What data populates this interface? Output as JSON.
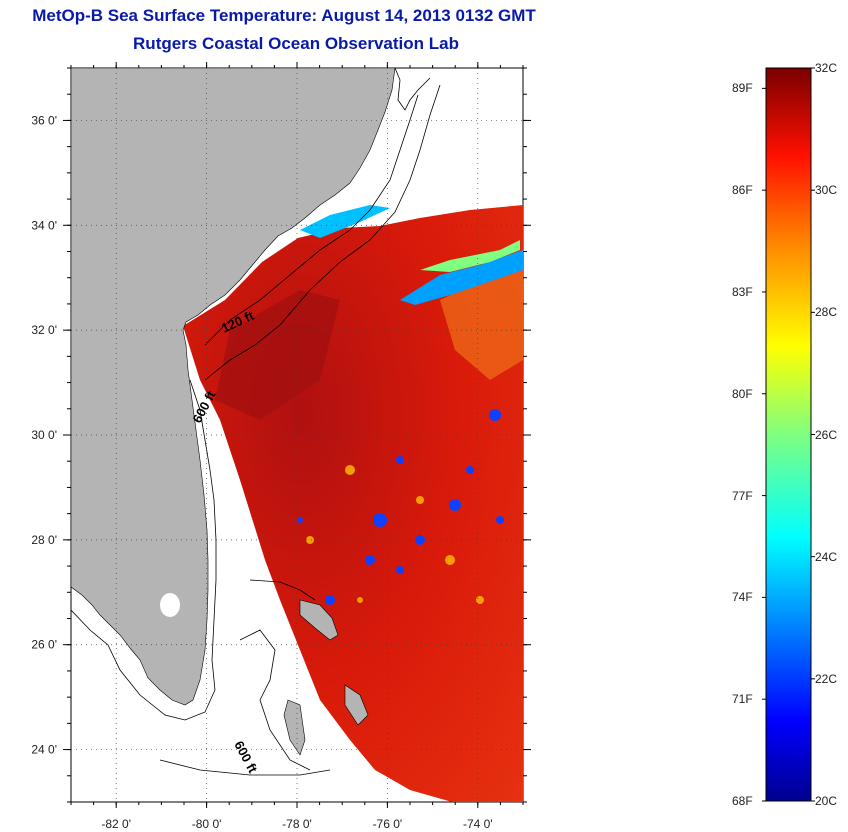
{
  "title": {
    "line1": "MetOp-B Sea Surface Temperature:  August 14, 2013 0132 GMT",
    "line2": "Rutgers Coastal Ocean Observation Lab",
    "color": "#0a1aa8"
  },
  "map": {
    "longitude_range": [
      -83.0,
      -73.0
    ],
    "latitude_range": [
      23.0,
      37.0
    ],
    "x_ticks": [
      {
        "lon": -82,
        "label": "-82 0'"
      },
      {
        "lon": -80,
        "label": "-80 0'"
      },
      {
        "lon": -78,
        "label": "-78 0'"
      },
      {
        "lon": -76,
        "label": "-76 0'"
      },
      {
        "lon": -74,
        "label": "-74 0'"
      }
    ],
    "y_ticks": [
      {
        "lat": 24,
        "label": "24 0'"
      },
      {
        "lat": 26,
        "label": "26 0'"
      },
      {
        "lat": 28,
        "label": "28 0'"
      },
      {
        "lat": 30,
        "label": "30 0'"
      },
      {
        "lat": 32,
        "label": "32 0'"
      },
      {
        "lat": 34,
        "label": "34 0'"
      },
      {
        "lat": 36,
        "label": "36 0'"
      }
    ],
    "grid": "dotted",
    "land_color": "#b4b4b4",
    "isobath_labels": [
      "120 ft",
      "600 ft",
      "600 ft"
    ]
  },
  "colorbar": {
    "min_c": 20,
    "max_c": 32,
    "min_f": 68,
    "max_f": 89.6,
    "celsius_labels": [
      "32C",
      "30C",
      "28C",
      "26C",
      "24C",
      "22C",
      "20C"
    ],
    "fahrenheit_labels": [
      "89F",
      "86F",
      "83F",
      "80F",
      "77F",
      "74F",
      "71F",
      "68F"
    ],
    "colormap": [
      "#00008f",
      "#0000ff",
      "#0080ff",
      "#00ffff",
      "#80ff80",
      "#ffff00",
      "#ff8000",
      "#ff0000",
      "#800000"
    ]
  }
}
